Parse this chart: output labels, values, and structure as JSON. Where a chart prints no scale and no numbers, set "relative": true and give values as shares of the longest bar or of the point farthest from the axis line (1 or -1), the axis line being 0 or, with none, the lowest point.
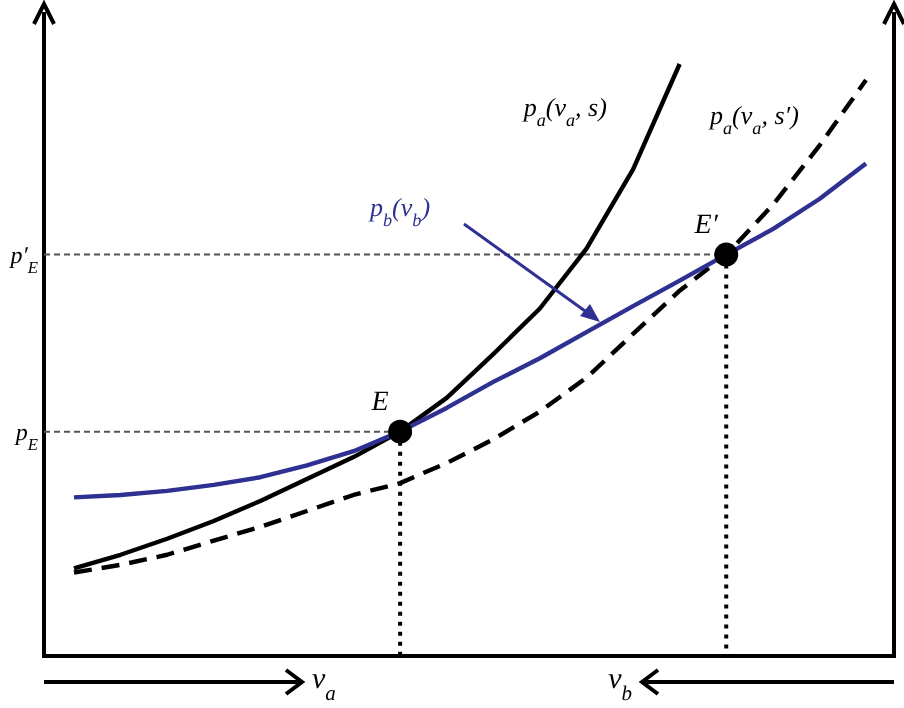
{
  "chart_data": {
    "type": "line",
    "relative": true,
    "categories": [
      null,
      null,
      null,
      null,
      null,
      null,
      null,
      null,
      null,
      null,
      null,
      null,
      null,
      null,
      null,
      null,
      null,
      null
    ],
    "series": [
      {
        "name": "p$_{a}$(v$_{a}$, s)",
        "color": "#000000",
        "line_style": "solid",
        "values": [
          0.148,
          0.171,
          0.198,
          0.228,
          0.262,
          0.299,
          0.336,
          0.379,
          0.436,
          0.51,
          0.587,
          0.688,
          0.822,
          1,
          null,
          null,
          null,
          null
        ]
      },
      {
        "name": "p$_{a}$(v$_{a}$, s′)",
        "color": "#000000",
        "line_style": "dashed",
        "values": [
          0.141,
          0.154,
          0.171,
          0.195,
          0.218,
          0.245,
          0.272,
          0.292,
          0.326,
          0.366,
          0.413,
          0.47,
          0.544,
          0.617,
          0.678,
          0.762,
          0.862,
          0.973
        ]
      },
      {
        "name": "p$_{b}$(v$_{b}$)",
        "color": "#2e3192",
        "line_style": "solid",
        "values": [
          0.268,
          0.272,
          0.279,
          0.289,
          0.302,
          0.322,
          0.346,
          0.379,
          0.419,
          0.463,
          0.503,
          0.547,
          0.591,
          0.634,
          0.678,
          0.721,
          0.772,
          0.832
        ]
      }
    ],
    "ref_lines": [
      {
        "axis": "y",
        "value": 0.379,
        "label": "p$_{E}$",
        "line_style": "dashed"
      },
      {
        "axis": "y",
        "value": 0.678,
        "label": "p′$_{E}$",
        "line_style": "dashed"
      }
    ],
    "annotations": [
      "v$_{a}$",
      "v$_{b}$",
      {
        "text": "E",
        "y": 0.379
      },
      {
        "text": "E′",
        "y": 0.678
      }
    ]
  }
}
